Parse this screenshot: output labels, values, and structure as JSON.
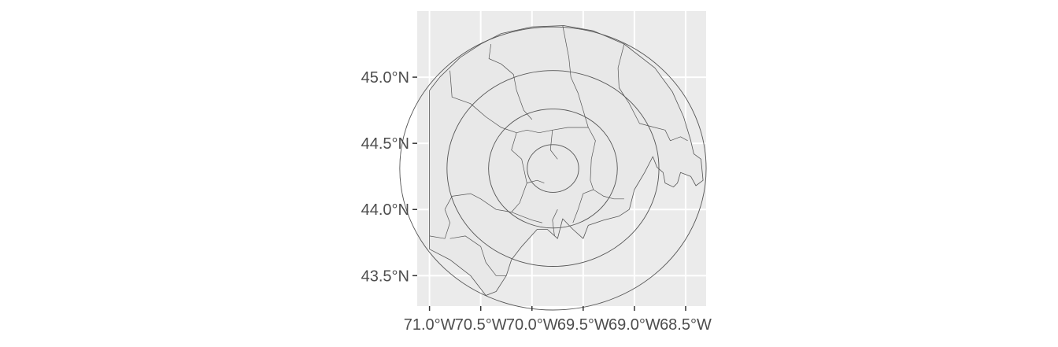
{
  "map": {
    "type": "map",
    "projection": "geographic lon/lat",
    "panel_background": "#ebebeb",
    "gridline_color": "#ffffff",
    "region_fill": "#e8e8e8",
    "region_stroke": "#555555",
    "axis_text_color": "#4d4d4d",
    "grid": true,
    "xlim": [
      -71.12,
      -68.3
    ],
    "ylim": [
      43.27,
      45.5
    ],
    "x_ticks": [
      {
        "value": -71.0,
        "label": "71.0°W"
      },
      {
        "value": -70.5,
        "label": "70.5°W"
      },
      {
        "value": -70.0,
        "label": "70.0°W"
      },
      {
        "value": -69.5,
        "label": "69.5°W"
      },
      {
        "value": -69.0,
        "label": "69.0°W"
      },
      {
        "value": -68.5,
        "label": "68.5°W"
      }
    ],
    "y_ticks": [
      {
        "value": 45.0,
        "label": "45.0°N"
      },
      {
        "value": 44.5,
        "label": "44.5°N"
      },
      {
        "value": 44.0,
        "label": "44.0°N"
      },
      {
        "value": 43.5,
        "label": "43.5°N"
      }
    ],
    "buffer_rings": {
      "center": [
        -69.795,
        44.31
      ],
      "radii_lat_deg": [
        0.18,
        0.45,
        0.74,
        1.07
      ]
    },
    "outer_boundary": [
      [
        -71.0,
        44.9
      ],
      [
        -70.9,
        45.0
      ],
      [
        -70.7,
        45.15
      ],
      [
        -70.5,
        45.25
      ],
      [
        -70.3,
        45.33
      ],
      [
        -70.0,
        45.38
      ],
      [
        -69.69,
        45.39
      ],
      [
        -69.4,
        45.35
      ],
      [
        -69.1,
        45.25
      ],
      [
        -68.8,
        45.07
      ],
      [
        -68.63,
        44.89
      ],
      [
        -68.52,
        44.7
      ],
      [
        -68.45,
        44.52
      ],
      [
        -68.42,
        44.42
      ],
      [
        -68.35,
        44.38
      ],
      [
        -68.33,
        44.22
      ],
      [
        -68.4,
        44.18
      ],
      [
        -68.45,
        44.25
      ],
      [
        -68.55,
        44.28
      ],
      [
        -68.58,
        44.2
      ],
      [
        -68.62,
        44.17
      ],
      [
        -68.7,
        44.2
      ],
      [
        -68.72,
        44.28
      ],
      [
        -68.78,
        44.32
      ],
      [
        -68.82,
        44.4
      ],
      [
        -68.9,
        44.28
      ],
      [
        -69.0,
        44.15
      ],
      [
        -69.05,
        44.0
      ],
      [
        -69.15,
        43.95
      ],
      [
        -69.3,
        43.92
      ],
      [
        -69.45,
        43.88
      ],
      [
        -69.5,
        43.78
      ],
      [
        -69.6,
        43.85
      ],
      [
        -69.7,
        43.93
      ],
      [
        -69.75,
        43.78
      ],
      [
        -69.85,
        43.85
      ],
      [
        -69.95,
        43.85
      ],
      [
        -70.1,
        43.72
      ],
      [
        -70.2,
        43.62
      ],
      [
        -70.25,
        43.5
      ],
      [
        -70.35,
        43.38
      ],
      [
        -70.45,
        43.35
      ],
      [
        -70.6,
        43.5
      ],
      [
        -70.8,
        43.62
      ],
      [
        -71.0,
        43.7
      ],
      [
        -71.0,
        44.9
      ]
    ],
    "county_lines": [
      [
        [
          -70.8,
          45.05
        ],
        [
          -70.78,
          44.85
        ],
        [
          -70.6,
          44.8
        ],
        [
          -70.45,
          44.7
        ],
        [
          -70.3,
          44.62
        ],
        [
          -70.15,
          44.58
        ]
      ],
      [
        [
          -70.4,
          45.25
        ],
        [
          -70.42,
          45.14
        ],
        [
          -70.3,
          45.1
        ],
        [
          -70.18,
          45.02
        ],
        [
          -70.15,
          44.9
        ],
        [
          -70.08,
          44.75
        ],
        [
          -70.0,
          44.68
        ]
      ],
      [
        [
          -69.7,
          45.39
        ],
        [
          -69.64,
          45.15
        ],
        [
          -69.62,
          45.0
        ],
        [
          -69.55,
          44.88
        ],
        [
          -69.5,
          44.75
        ],
        [
          -69.45,
          44.62
        ]
      ],
      [
        [
          -69.1,
          45.25
        ],
        [
          -69.16,
          45.07
        ],
        [
          -69.15,
          44.92
        ],
        [
          -69.05,
          44.8
        ],
        [
          -68.95,
          44.65
        ],
        [
          -68.8,
          44.62
        ]
      ],
      [
        [
          -70.15,
          44.58
        ],
        [
          -70.05,
          44.6
        ],
        [
          -69.93,
          44.58
        ],
        [
          -69.8,
          44.6
        ],
        [
          -69.65,
          44.62
        ],
        [
          -69.55,
          44.62
        ],
        [
          -69.45,
          44.62
        ]
      ],
      [
        [
          -70.15,
          44.58
        ],
        [
          -70.2,
          44.45
        ],
        [
          -70.1,
          44.38
        ],
        [
          -70.05,
          44.2
        ],
        [
          -70.12,
          44.05
        ],
        [
          -70.2,
          43.98
        ]
      ],
      [
        [
          -70.2,
          43.98
        ],
        [
          -70.35,
          44.0
        ],
        [
          -70.5,
          44.08
        ],
        [
          -70.6,
          44.12
        ],
        [
          -70.78,
          44.1
        ],
        [
          -70.85,
          44.0
        ]
      ],
      [
        [
          -70.85,
          44.0
        ],
        [
          -70.8,
          43.9
        ],
        [
          -70.85,
          43.78
        ],
        [
          -71.0,
          43.8
        ]
      ],
      [
        [
          -70.8,
          43.78
        ],
        [
          -70.65,
          43.8
        ],
        [
          -70.5,
          43.72
        ],
        [
          -70.45,
          43.6
        ],
        [
          -70.35,
          43.5
        ],
        [
          -70.25,
          43.5
        ]
      ],
      [
        [
          -70.2,
          43.98
        ],
        [
          -70.1,
          43.95
        ],
        [
          -70.0,
          43.92
        ],
        [
          -69.9,
          43.9
        ]
      ],
      [
        [
          -69.45,
          44.62
        ],
        [
          -69.38,
          44.52
        ],
        [
          -69.42,
          44.38
        ],
        [
          -69.43,
          44.22
        ],
        [
          -69.4,
          44.15
        ]
      ],
      [
        [
          -69.4,
          44.15
        ],
        [
          -69.5,
          44.12
        ],
        [
          -69.55,
          44.0
        ],
        [
          -69.6,
          43.9
        ]
      ],
      [
        [
          -69.4,
          44.15
        ],
        [
          -69.3,
          44.1
        ],
        [
          -69.2,
          44.08
        ],
        [
          -69.1,
          44.08
        ]
      ],
      [
        [
          -69.8,
          44.6
        ],
        [
          -69.82,
          44.45
        ],
        [
          -69.75,
          44.38
        ]
      ],
      [
        [
          -70.05,
          44.2
        ],
        [
          -69.95,
          44.22
        ],
        [
          -69.88,
          44.2
        ]
      ],
      [
        [
          -69.75,
          44.0
        ],
        [
          -69.8,
          43.92
        ],
        [
          -69.78,
          43.8
        ]
      ],
      [
        [
          -68.8,
          44.62
        ],
        [
          -68.7,
          44.6
        ],
        [
          -68.65,
          44.52
        ],
        [
          -68.55,
          44.55
        ],
        [
          -68.48,
          44.52
        ]
      ]
    ]
  }
}
